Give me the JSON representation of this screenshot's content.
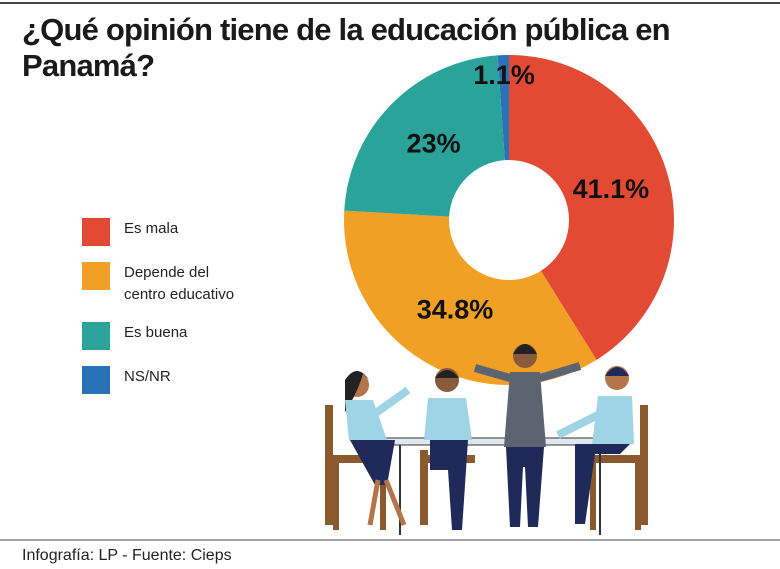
{
  "chart_data": {
    "type": "donut",
    "title": "¿Qué opinión tiene de la educación pública en Panamá?",
    "categories": [
      "Es mala",
      "Depende del centro educativo",
      "Es buena",
      "NS/NR"
    ],
    "values": [
      41.1,
      34.8,
      23,
      1.1
    ],
    "value_labels": [
      "41.1%",
      "34.8%",
      "23%",
      "1.1%"
    ],
    "colors": [
      "#e34a33",
      "#f0a024",
      "#2aa39a",
      "#2a72b8"
    ],
    "source": "Infografía: LP  - Fuente: Cieps"
  }
}
